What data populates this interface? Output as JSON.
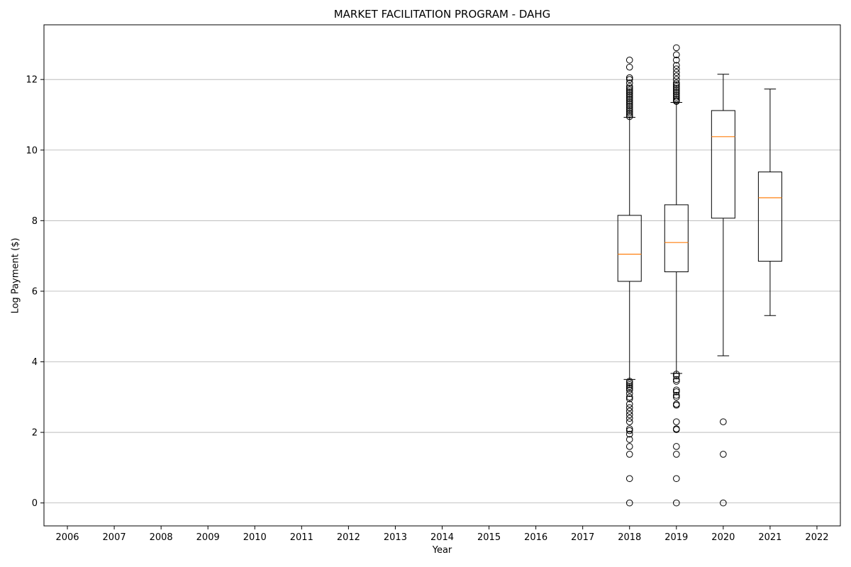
{
  "chart_data": {
    "type": "box",
    "title": "MARKET FACILITATION PROGRAM - DAHG",
    "xlabel": "Year",
    "ylabel": "Log Payment ($)",
    "categories": [
      "2006",
      "2007",
      "2008",
      "2009",
      "2010",
      "2011",
      "2012",
      "2013",
      "2014",
      "2015",
      "2016",
      "2017",
      "2018",
      "2019",
      "2020",
      "2021",
      "2022"
    ],
    "yticks": [
      0,
      2,
      4,
      6,
      8,
      10,
      12
    ],
    "ylim": [
      -0.65,
      13.55
    ],
    "grid": "horizontal",
    "colors": {
      "box": "#000000",
      "median": "#ff7f0e",
      "grid": "#b0b0b0"
    },
    "boxes": [
      {
        "year": "2018",
        "whisker_low": 3.5,
        "q1": 6.28,
        "median": 7.05,
        "q3": 8.15,
        "whisker_high": 10.93,
        "outliers": [
          12.55,
          12.35,
          12.05,
          12.0,
          11.9,
          11.8,
          11.75,
          11.7,
          11.65,
          11.6,
          11.55,
          11.5,
          11.45,
          11.4,
          11.35,
          11.3,
          11.25,
          11.2,
          11.15,
          11.1,
          11.05,
          11.0,
          10.95,
          3.45,
          3.4,
          3.35,
          3.3,
          3.25,
          3.2,
          3.1,
          3.0,
          2.95,
          2.8,
          2.7,
          2.6,
          2.5,
          2.4,
          2.3,
          2.1,
          2.05,
          1.95,
          1.8,
          1.6,
          1.38,
          0.69,
          0.0
        ]
      },
      {
        "year": "2019",
        "whisker_low": 3.67,
        "q1": 6.55,
        "median": 7.38,
        "q3": 8.45,
        "whisker_high": 11.35,
        "outliers": [
          12.9,
          12.7,
          12.55,
          12.4,
          12.3,
          12.2,
          12.1,
          12.0,
          11.9,
          11.85,
          11.8,
          11.75,
          11.7,
          11.65,
          11.6,
          11.55,
          11.5,
          11.45,
          11.4,
          11.38,
          3.65,
          3.6,
          3.5,
          3.45,
          3.2,
          3.15,
          3.05,
          3.0,
          2.8,
          2.77,
          2.3,
          2.1,
          2.08,
          1.6,
          1.38,
          0.69,
          0.0
        ]
      },
      {
        "year": "2020",
        "whisker_low": 4.17,
        "q1": 8.07,
        "median": 10.38,
        "q3": 11.12,
        "whisker_high": 12.15,
        "outliers": [
          2.3,
          1.38,
          0.0
        ]
      },
      {
        "year": "2021",
        "whisker_low": 5.31,
        "q1": 6.85,
        "median": 8.65,
        "q3": 9.38,
        "whisker_high": 11.73,
        "outliers": []
      }
    ]
  }
}
